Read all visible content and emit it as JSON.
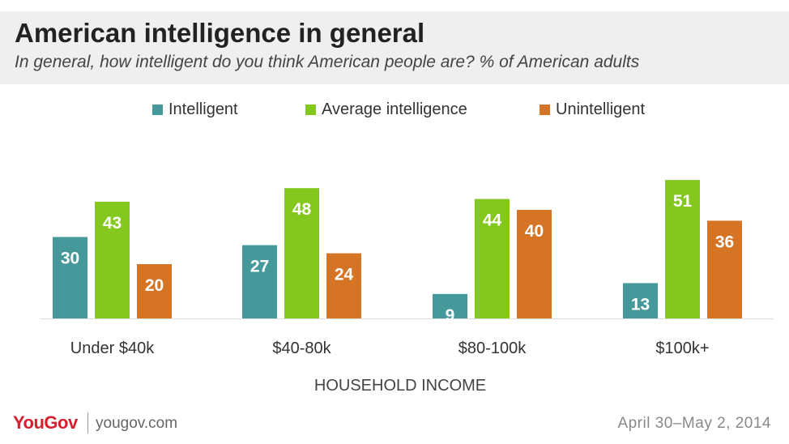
{
  "header": {
    "title": "American intelligence in general",
    "subtitle": "In general, how intelligent do you think American people are? % of American adults"
  },
  "legend": [
    {
      "label": "Intelligent",
      "color": "#45999a"
    },
    {
      "label": "Average intelligence",
      "color": "#84c81f"
    },
    {
      "label": "Unintelligent",
      "color": "#d67426"
    }
  ],
  "chart_data": {
    "type": "bar",
    "title": "American intelligence in general",
    "subtitle": "In general, how intelligent do you think American people are? % of American adults",
    "categories": [
      "Under $40k",
      "$40-80k",
      "$80-100k",
      "$100k+"
    ],
    "series": [
      {
        "name": "Intelligent",
        "color": "#45999a",
        "values": [
          30,
          27,
          9,
          13
        ]
      },
      {
        "name": "Average intelligence",
        "color": "#84c81f",
        "values": [
          43,
          48,
          44,
          51
        ]
      },
      {
        "name": "Unintelligent",
        "color": "#d67426",
        "values": [
          20,
          24,
          40,
          36
        ]
      }
    ],
    "xlabel": "HOUSEHOLD INCOME",
    "ylabel": "",
    "ylim": [
      0,
      51
    ],
    "grid": false,
    "legend_position": "top"
  },
  "footer": {
    "logo": "YouGov",
    "site": "yougov.com",
    "date": "April 30–May 2, 2014"
  }
}
